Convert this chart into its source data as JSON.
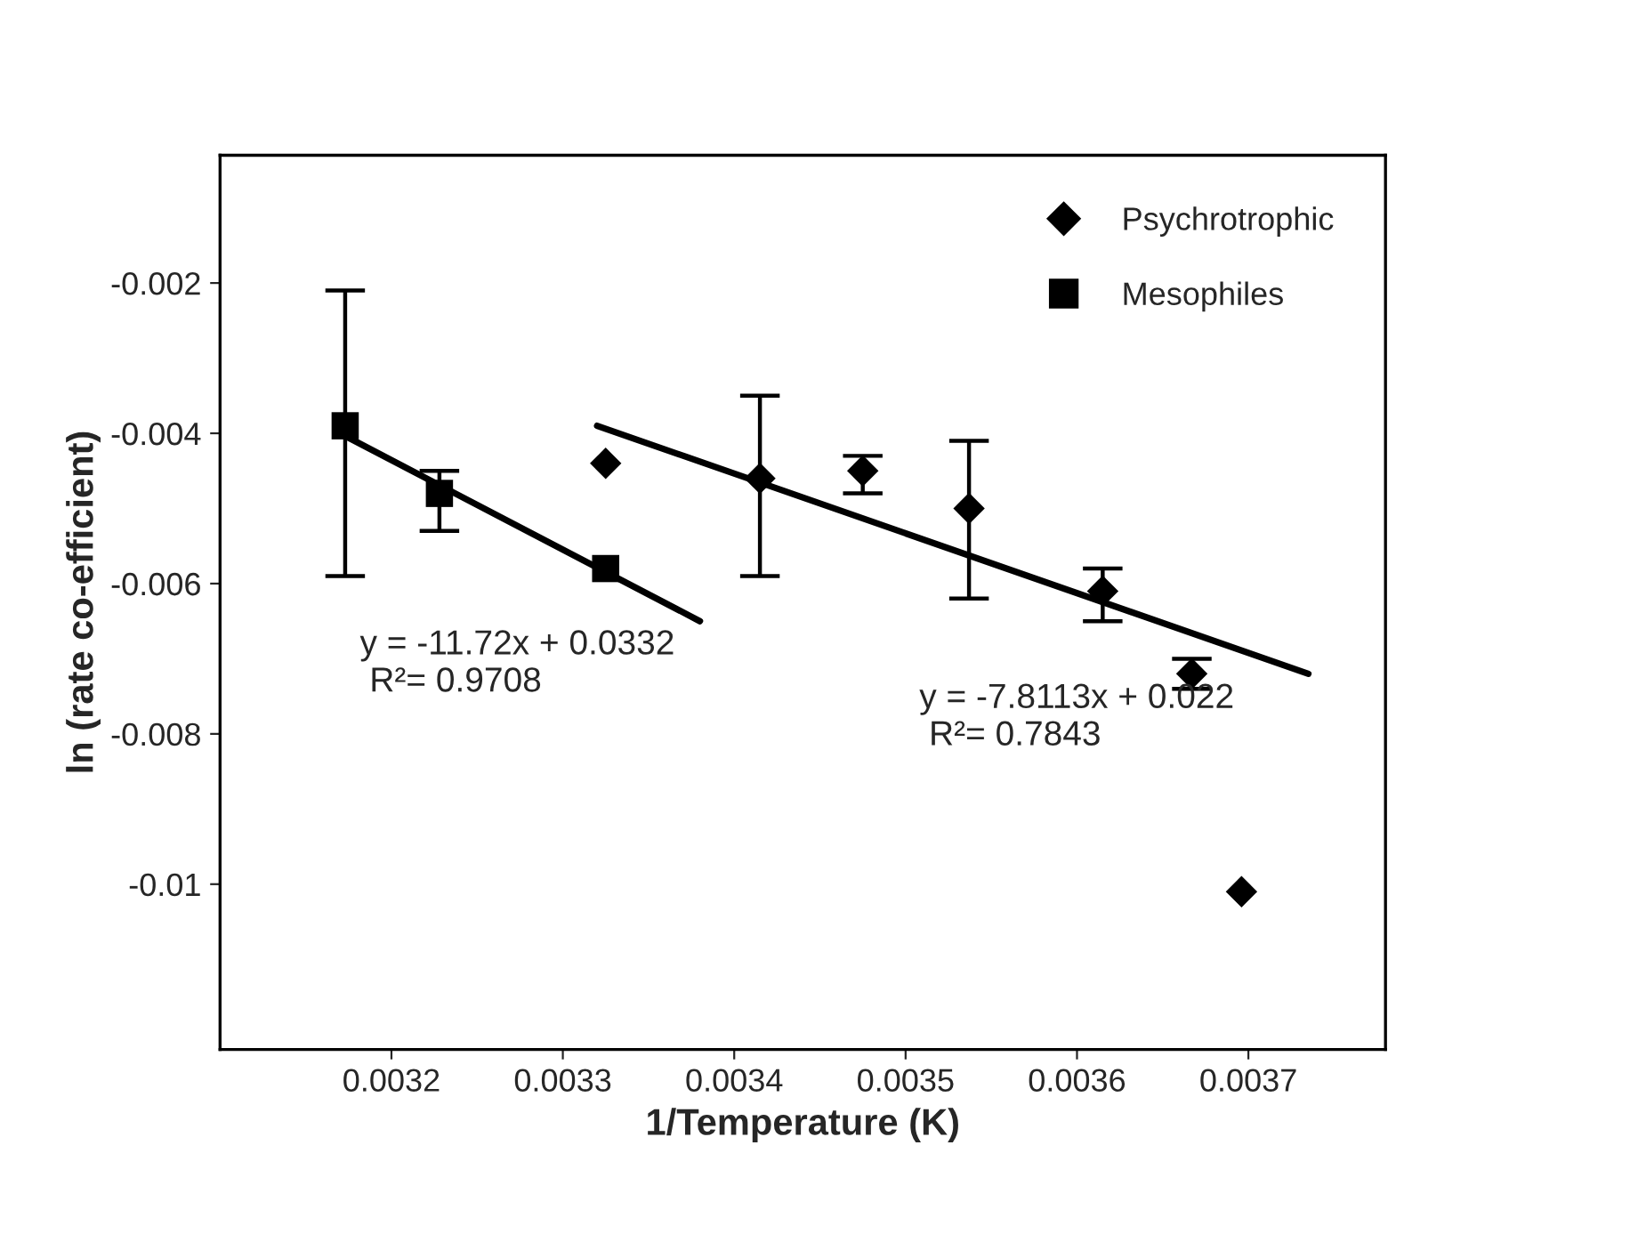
{
  "chart_data": {
    "type": "scatter",
    "xlabel": "1/Temperature (K)",
    "ylabel": "ln (rate co-efficient)",
    "xlim": [
      0.0031,
      0.00378
    ],
    "ylim": [
      -0.0122,
      -0.0003
    ],
    "xticks": [
      0.0032,
      0.0033,
      0.0034,
      0.0035,
      0.0036,
      0.0037
    ],
    "yticks": [
      -0.002,
      -0.004,
      -0.006,
      -0.008,
      {
        "value": -0.01,
        "label": "-0.01"
      }
    ],
    "grid": false,
    "legend": "top right",
    "series": [
      {
        "name": "Psychrotrophic",
        "marker": "diamond",
        "color": "#000000",
        "x": [
          0.003325,
          0.003415,
          0.003475,
          0.003537,
          0.003615,
          0.003667,
          0.003696
        ],
        "values": [
          -0.0044,
          -0.0046,
          -0.0045,
          -0.005,
          -0.0061,
          -0.0072,
          -0.0101
        ],
        "errors": [
          null,
          [
            -0.0059,
            -0.0035
          ],
          [
            -0.0048,
            -0.0043
          ],
          [
            -0.0062,
            -0.0041
          ],
          [
            -0.0065,
            -0.0058
          ],
          [
            -0.0074,
            -0.007
          ],
          null
        ]
      },
      {
        "name": "Mesophiles",
        "marker": "square",
        "color": "#000000",
        "x": [
          0.003173,
          0.003228,
          0.003325
        ],
        "values": [
          -0.0039,
          -0.0048,
          -0.0058
        ],
        "errors": [
          [
            -0.0059,
            -0.0021
          ],
          [
            -0.0053,
            -0.0045
          ],
          null
        ]
      },
      {
        "type": "line",
        "color": "#000000",
        "x": [
          0.00317,
          0.00338
        ],
        "values": [
          -0.004,
          -0.0065
        ]
      },
      {
        "type": "line",
        "color": "#000000",
        "x": [
          0.00332,
          0.003735
        ],
        "values": [
          -0.0039,
          -0.0072
        ]
      }
    ],
    "annotations": [
      "y = -11.72x + 0.0332\n R²= 0.9708",
      "y = -7.8113x + 0.022\n R²= 0.7843"
    ]
  }
}
